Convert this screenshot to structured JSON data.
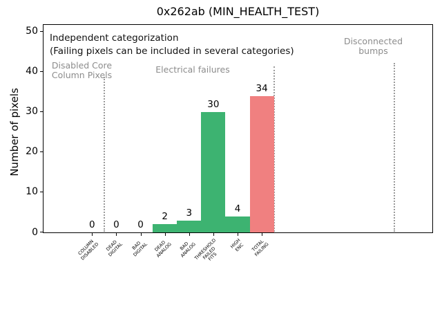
{
  "chart_data": {
    "type": "bar",
    "title": "0x262ab (MIN_HEALTH_TEST)",
    "ylabel": "Number of pixels",
    "xlabel": "",
    "categories": [
      "COLUMN\nDISABLED",
      "DEAD\nDIGITAL",
      "BAD\nDIGITAL",
      "DEAD\nANALOG",
      "BAD\nANALOG",
      "THRESHOLD\nFAILED\nFITS",
      "HIGH\nENC",
      "TOTAL\nFAILING"
    ],
    "values": [
      0,
      0,
      0,
      2,
      3,
      30,
      4,
      34
    ],
    "value_labels": [
      "0",
      "0",
      "0",
      "2",
      "3",
      "30",
      "4",
      "34"
    ],
    "bar_colors": [
      "#3db371",
      "#3db371",
      "#3db371",
      "#3db371",
      "#3db371",
      "#3db371",
      "#3db371",
      "#f08080"
    ],
    "yticks": [
      0,
      10,
      20,
      30,
      40,
      50
    ],
    "ylim": [
      0,
      51.5
    ],
    "xlim": [
      -2,
      14
    ],
    "grid": false,
    "legend": null,
    "separators_x": [
      0.5,
      7.5,
      12.45
    ],
    "annotations": {
      "independent_line1": "Independent categorization",
      "independent_line2": "(Failing pixels can be included in several categories)",
      "disabled_core": "Disabled Core\nColumn Pixels",
      "electrical": "Electrical failures",
      "disconnected": "Disconnected\nbumps"
    },
    "colors": {
      "bar_green": "#3db371",
      "bar_red": "#f08080",
      "annotation_gray": "#8c8c8c",
      "separator_gray": "#9a9a9a",
      "text_black": "#111111"
    }
  }
}
